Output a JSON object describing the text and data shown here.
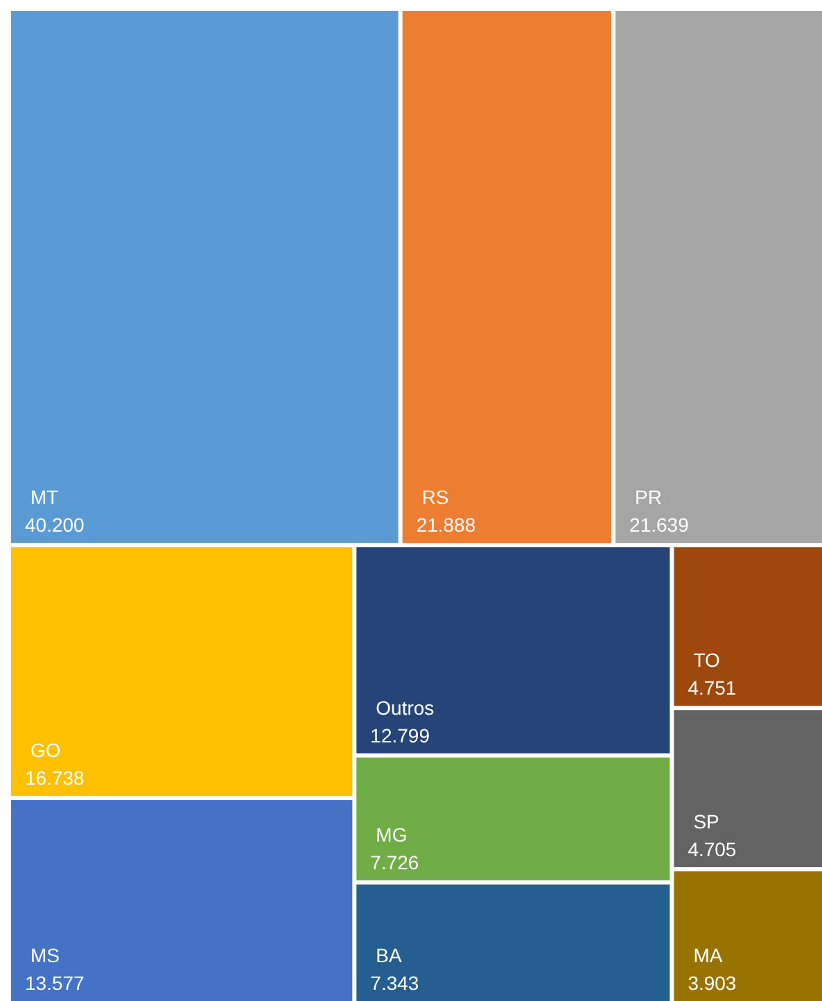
{
  "chart_data": {
    "type": "other",
    "categories": [
      "MT",
      "RS",
      "PR",
      "GO",
      "MS",
      "Outros",
      "MG",
      "BA",
      "TO",
      "SP",
      "MA"
    ],
    "values": [
      40200,
      21888,
      21639,
      16738,
      13577,
      12799,
      7726,
      7343,
      4751,
      4705,
      3903
    ],
    "value_labels": [
      "40.200",
      "21.888",
      "21.639",
      "16.738",
      "13.577",
      "12.799",
      "7.726",
      "7.343",
      "4.751",
      "4.705",
      "3.903"
    ],
    "colors": [
      "#5b9bd5",
      "#ed7d31",
      "#a5a5a5",
      "#ffc000",
      "#4472c4",
      "#264478",
      "#70ad47",
      "#255e91",
      "#9e480e",
      "#636363",
      "#997300"
    ]
  }
}
